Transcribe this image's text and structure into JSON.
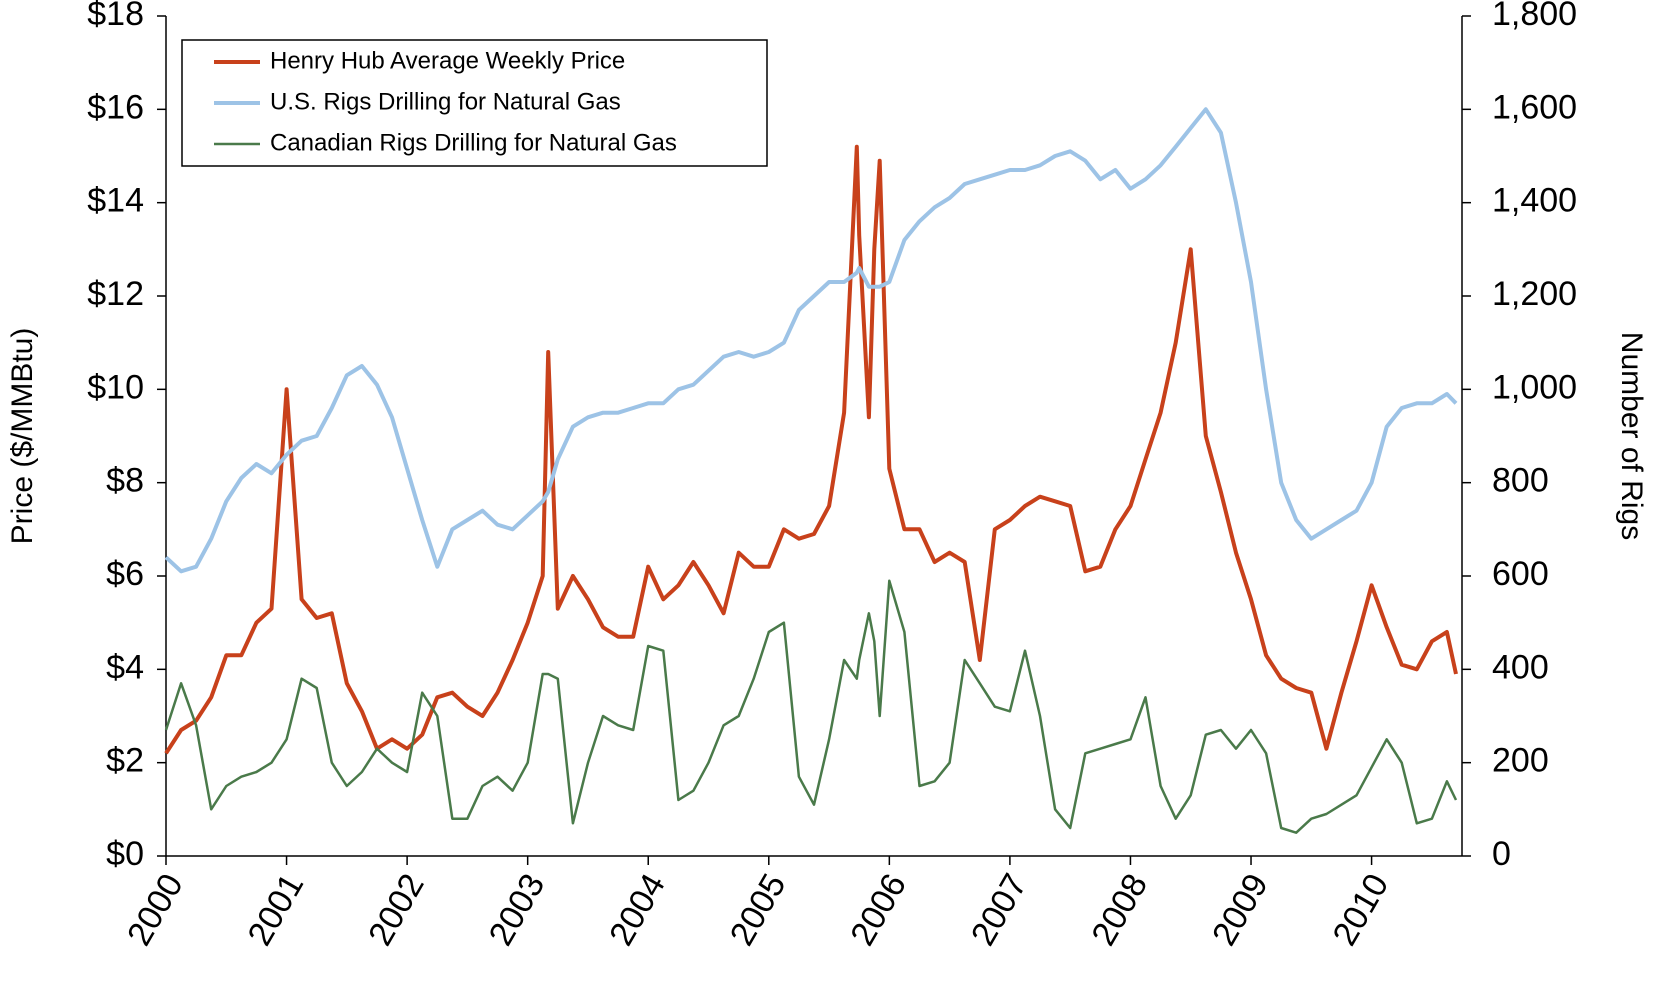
{
  "chart_data": {
    "type": "line",
    "y_label": "Price ($/MMBtu)",
    "y2_label": "Number of Rigs",
    "legend": "upper left",
    "xlim": [
      2000,
      2010.75
    ],
    "xticks": [
      2000,
      2001,
      2002,
      2003,
      2004,
      2005,
      2006,
      2007,
      2008,
      2009,
      2010
    ],
    "ylim": [
      0,
      18
    ],
    "yticks": [
      {
        "value": 0,
        "label": "$0"
      },
      {
        "value": 2,
        "label": "$2"
      },
      {
        "value": 4,
        "label": "$4"
      },
      {
        "value": 6,
        "label": "$6"
      },
      {
        "value": 8,
        "label": "$8"
      },
      {
        "value": 10,
        "label": "$10"
      },
      {
        "value": 12,
        "label": "$12"
      },
      {
        "value": 14,
        "label": "$14"
      },
      {
        "value": 16,
        "label": "$16"
      },
      {
        "value": 18,
        "label": "$18"
      }
    ],
    "y2lim": [
      0,
      1800
    ],
    "y2ticks": [
      0,
      200,
      400,
      600,
      800,
      {
        "value": 1000,
        "label": "1,000"
      },
      {
        "value": 1200,
        "label": "1,200"
      },
      {
        "value": 1400,
        "label": "1,400"
      },
      {
        "value": 1600,
        "label": "1,600"
      },
      {
        "value": 1800,
        "label": "1,800"
      }
    ],
    "x": [
      2000,
      2000.125,
      2000.25,
      2000.375,
      2000.5,
      2000.625,
      2000.75,
      2000.875,
      2001,
      2001.125,
      2001.25,
      2001.375,
      2001.5,
      2001.625,
      2001.75,
      2001.875,
      2002,
      2002.125,
      2002.25,
      2002.375,
      2002.5,
      2002.625,
      2002.75,
      2002.875,
      2003,
      2003.125,
      2003.17,
      2003.25,
      2003.375,
      2003.5,
      2003.625,
      2003.75,
      2003.875,
      2004,
      2004.125,
      2004.25,
      2004.375,
      2004.5,
      2004.625,
      2004.75,
      2004.875,
      2005,
      2005.125,
      2005.25,
      2005.375,
      2005.5,
      2005.625,
      2005.73,
      2005.75,
      2005.83,
      2005.875,
      2005.92,
      2006,
      2006.125,
      2006.25,
      2006.375,
      2006.5,
      2006.625,
      2006.75,
      2006.875,
      2007,
      2007.125,
      2007.25,
      2007.375,
      2007.5,
      2007.625,
      2007.75,
      2007.875,
      2008,
      2008.125,
      2008.25,
      2008.375,
      2008.5,
      2008.625,
      2008.75,
      2008.875,
      2009,
      2009.125,
      2009.25,
      2009.375,
      2009.5,
      2009.625,
      2009.75,
      2009.875,
      2010,
      2010.125,
      2010.25,
      2010.375,
      2010.5,
      2010.625,
      2010.7
    ],
    "series": [
      {
        "name": "Henry Hub Average Weekly Price",
        "color": "#c8411b",
        "width": 4,
        "values": [
          2.2,
          2.7,
          2.9,
          3.4,
          4.3,
          4.3,
          5.0,
          5.3,
          10.0,
          5.5,
          5.1,
          5.2,
          3.7,
          3.1,
          2.3,
          2.5,
          2.3,
          2.6,
          3.4,
          3.5,
          3.2,
          3.0,
          3.5,
          4.2,
          5.0,
          6.0,
          10.8,
          5.3,
          6.0,
          5.5,
          4.9,
          4.7,
          4.7,
          6.2,
          5.5,
          5.8,
          6.3,
          5.8,
          5.2,
          6.5,
          6.2,
          6.2,
          7.0,
          6.8,
          6.9,
          7.5,
          9.5,
          15.2,
          13.3,
          9.4,
          13.0,
          14.9,
          8.3,
          7.0,
          7.0,
          6.3,
          6.5,
          6.3,
          4.2,
          7.0,
          7.2,
          7.5,
          7.7,
          7.6,
          7.5,
          6.1,
          6.2,
          7.0,
          7.5,
          8.5,
          9.5,
          11.0,
          13.0,
          9.0,
          7.8,
          6.5,
          5.5,
          4.3,
          3.8,
          3.6,
          3.5,
          2.3,
          3.5,
          4.6,
          5.8,
          4.9,
          4.1,
          4.0,
          4.6,
          4.8,
          3.9
        ]
      },
      {
        "name": "U.S. Rigs Drilling for Natural Gas",
        "color": "#9dc3e6",
        "width": 4,
        "axis": "y2",
        "values": [
          640,
          610,
          620,
          680,
          760,
          810,
          840,
          820,
          860,
          890,
          900,
          960,
          1030,
          1050,
          1010,
          940,
          830,
          720,
          620,
          700,
          720,
          740,
          710,
          700,
          730,
          760,
          780,
          850,
          920,
          940,
          950,
          950,
          960,
          970,
          970,
          1000,
          1010,
          1040,
          1070,
          1080,
          1070,
          1080,
          1100,
          1170,
          1200,
          1230,
          1230,
          1250,
          1260,
          1220,
          1220,
          1220,
          1230,
          1320,
          1360,
          1390,
          1410,
          1440,
          1450,
          1460,
          1470,
          1470,
          1480,
          1500,
          1510,
          1490,
          1450,
          1470,
          1430,
          1450,
          1480,
          1520,
          1560,
          1600,
          1550,
          1400,
          1230,
          1000,
          800,
          720,
          680,
          700,
          720,
          740,
          800,
          920,
          960,
          970,
          970,
          990,
          970
        ]
      },
      {
        "name": "Canadian Rigs Drilling for Natural Gas",
        "color": "#4a7a4a",
        "width": 2.5,
        "axis": "y2",
        "values": [
          270,
          370,
          280,
          100,
          150,
          170,
          180,
          200,
          250,
          380,
          360,
          200,
          150,
          180,
          230,
          200,
          180,
          350,
          300,
          80,
          80,
          150,
          170,
          140,
          200,
          390,
          390,
          380,
          70,
          200,
          300,
          280,
          270,
          450,
          440,
          120,
          140,
          200,
          280,
          300,
          380,
          480,
          500,
          170,
          110,
          250,
          420,
          380,
          420,
          520,
          460,
          300,
          590,
          480,
          150,
          160,
          200,
          420,
          370,
          320,
          310,
          440,
          300,
          100,
          60,
          220,
          230,
          240,
          250,
          340,
          150,
          80,
          130,
          260,
          270,
          230,
          270,
          220,
          60,
          50,
          80,
          90,
          110,
          130,
          190,
          250,
          200,
          70,
          80,
          160,
          120
        ]
      }
    ]
  }
}
